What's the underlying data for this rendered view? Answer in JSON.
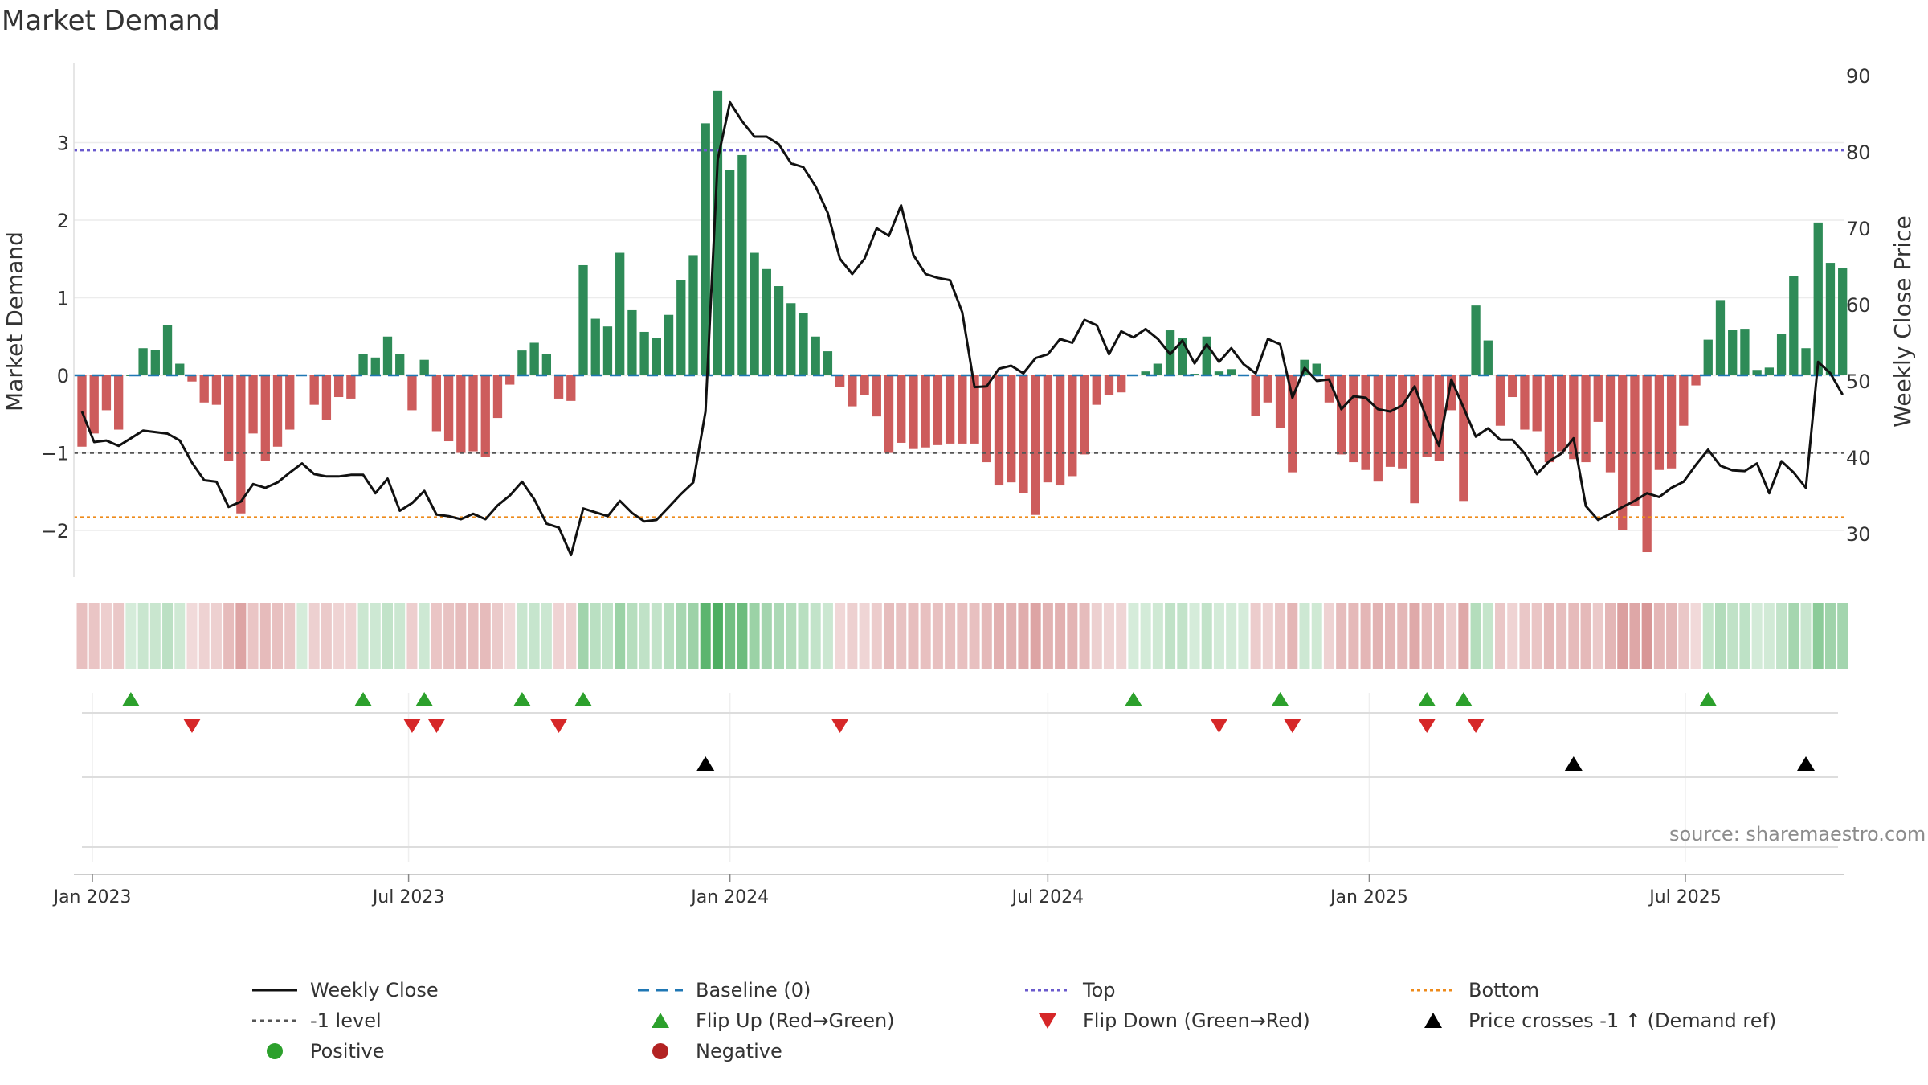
{
  "title": "Market Demand",
  "source": "source: sharemaestro.com",
  "colors": {
    "positive_bar": "#2e8b57",
    "negative_bar": "#cd5c5c",
    "close_line": "#111111",
    "baseline": "#1f77b4",
    "top_line": "#6a5acd",
    "bottom_line": "#ee8a1a",
    "minus_one_line": "#555555",
    "flip_up": "#2ca02c",
    "flip_down": "#d62728",
    "cross_marker": "#000000"
  },
  "legend": [
    {
      "key": "close",
      "label": "Weekly Close"
    },
    {
      "key": "baseline",
      "label": "Baseline (0)"
    },
    {
      "key": "top",
      "label": "Top"
    },
    {
      "key": "bottom",
      "label": "Bottom"
    },
    {
      "key": "minus1",
      "label": "-1 level"
    },
    {
      "key": "flipup",
      "label": "Flip Up (Red→Green)"
    },
    {
      "key": "flipdown",
      "label": "Flip Down (Green→Red)"
    },
    {
      "key": "cross",
      "label": "Price crosses -1 ↑ (Demand ref)"
    },
    {
      "key": "positive",
      "label": "Positive"
    },
    {
      "key": "negative",
      "label": "Negative"
    }
  ],
  "chart_data": {
    "type": "bar",
    "x_axis": {
      "ticks": [
        "Jan 2023",
        "Jul 2023",
        "Jan 2024",
        "Jul 2024",
        "Jan 2025",
        "Jul 2025"
      ],
      "first_week": "2022-12-26",
      "weeks": 145
    },
    "left_axis": {
      "label": "Market Demand",
      "ticks": [
        -2,
        -1,
        0,
        1,
        2,
        3
      ],
      "range": [
        -2.6,
        3.9
      ]
    },
    "right_axis": {
      "label": "Weekly Close Price",
      "ticks": [
        30,
        40,
        50,
        60,
        70,
        80,
        90
      ],
      "range": [
        24,
        92
      ]
    },
    "reference_lines": {
      "top": 2.9,
      "bottom": -1.83,
      "minus_one": -1.0,
      "baseline": 0
    },
    "demand": [
      -0.92,
      -0.75,
      -0.45,
      -0.7,
      0,
      0.35,
      0.33,
      0.65,
      0.15,
      -0.08,
      -0.35,
      -0.38,
      -1.1,
      -1.78,
      -0.75,
      -1.1,
      -0.92,
      -0.7,
      0,
      -0.38,
      -0.58,
      -0.28,
      -0.3,
      0.27,
      0.23,
      0.5,
      0.27,
      -0.45,
      0.2,
      -0.72,
      -0.85,
      -1.0,
      -0.98,
      -1.05,
      -0.55,
      -0.12,
      0.32,
      0.42,
      0.27,
      -0.3,
      -0.33,
      1.42,
      0.73,
      0.63,
      1.58,
      0.84,
      0.56,
      0.48,
      0.78,
      1.23,
      1.55,
      3.25,
      3.67,
      2.65,
      2.84,
      1.58,
      1.37,
      1.15,
      0.93,
      0.8,
      0.5,
      0.31,
      -0.15,
      -0.4,
      -0.25,
      -0.53,
      -1.0,
      -0.87,
      -0.95,
      -0.93,
      -0.9,
      -0.88,
      -0.88,
      -0.88,
      -1.12,
      -1.42,
      -1.38,
      -1.52,
      -1.8,
      -1.38,
      -1.42,
      -1.3,
      -1.02,
      -0.38,
      -0.25,
      -0.22,
      0,
      0.05,
      0.15,
      0.58,
      0.48,
      0.02,
      0.5,
      0.05,
      0.08,
      0,
      -0.52,
      -0.35,
      -0.68,
      -1.25,
      0.2,
      0.15,
      -0.35,
      -1.02,
      -1.12,
      -1.22,
      -1.37,
      -1.18,
      -1.2,
      -1.65,
      -1.05,
      -1.1,
      -0.45,
      -1.62,
      0.9,
      0.45,
      -0.65,
      -0.28,
      -0.7,
      -0.72,
      -1.12,
      -0.98,
      -1.08,
      -1.12,
      -0.6,
      -1.25,
      -2.0,
      -1.68,
      -2.28,
      -1.22,
      -1.2,
      -0.65,
      -0.13,
      0.46,
      0.97,
      0.59,
      0.6,
      0.07,
      0.1,
      0.53,
      1.28,
      0.35,
      1.97,
      1.45,
      1.38
    ],
    "weekly_close": [
      46,
      42,
      42.2,
      41.5,
      42.5,
      43.5,
      43.3,
      43.1,
      42.2,
      39.3,
      37,
      36.8,
      33.5,
      34.2,
      36.5,
      36,
      36.7,
      38,
      39.2,
      37.8,
      37.5,
      37.5,
      37.7,
      37.7,
      35.3,
      37.2,
      33,
      34,
      35.6,
      32.5,
      32.3,
      31.9,
      32.6,
      31.9,
      33.7,
      35,
      36.8,
      34.5,
      31.3,
      30.8,
      27.2,
      33.3,
      32.8,
      32.3,
      34.3,
      32.7,
      31.6,
      31.8,
      33.5,
      35.2,
      36.7,
      46,
      79,
      86.5,
      84,
      82,
      82,
      81,
      78.5,
      78,
      75.5,
      72,
      66,
      64,
      66,
      70,
      69,
      73,
      66.5,
      64,
      63.5,
      63.2,
      59,
      49.2,
      49.3,
      51.6,
      52,
      51,
      53,
      53.5,
      55.5,
      55,
      58,
      57.3,
      53.5,
      56.5,
      55.7,
      56.8,
      55.5,
      53.5,
      55.3,
      52.3,
      54.8,
      52.5,
      54.3,
      52.2,
      51,
      55.5,
      54.8,
      47.8,
      51.7,
      50,
      50.2,
      46.3,
      48,
      47.8,
      46.3,
      46,
      46.8,
      49.3,
      45,
      41.5,
      50.2,
      46.5,
      42.7,
      43.8,
      42.3,
      42.3,
      40.5,
      37.8,
      39.5,
      40.5,
      42.5,
      33.6,
      31.8,
      32.6,
      33.5,
      34.3,
      35.3,
      34.8,
      36,
      36.8,
      39,
      41,
      38.9,
      38.3,
      38.2,
      39.2,
      35.3,
      39.5,
      38,
      36,
      52.5,
      51,
      48.2
    ],
    "flip_up_weeks": [
      4,
      23,
      28,
      36,
      41,
      86,
      98,
      110,
      113,
      133
    ],
    "flip_down_weeks": [
      9,
      27,
      29,
      39,
      62,
      93,
      99,
      110,
      114
    ],
    "cross_up_weeks": [
      51,
      122,
      141
    ]
  }
}
